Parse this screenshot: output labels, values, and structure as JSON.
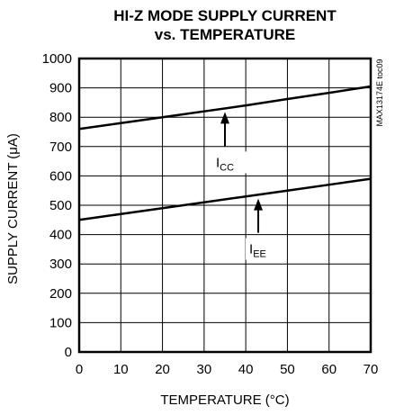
{
  "chart_data": {
    "type": "line",
    "title_line1": "HI-Z MODE SUPPLY CURRENT",
    "title_line2": "vs. TEMPERATURE",
    "xlabel": "TEMPERATURE (°C)",
    "ylabel": "SUPPLY CURRENT (μA)",
    "xlim": [
      0,
      70
    ],
    "ylim": [
      0,
      1000
    ],
    "x_ticks": [
      0,
      10,
      20,
      30,
      40,
      50,
      60,
      70
    ],
    "y_ticks": [
      0,
      100,
      200,
      300,
      400,
      500,
      600,
      700,
      800,
      900,
      1000
    ],
    "grid": true,
    "side_code": "MAX13174E toc09",
    "series": [
      {
        "name": "ICC",
        "label_main": "I",
        "label_sub": "CC",
        "x": [
          0,
          10,
          20,
          30,
          40,
          50,
          60,
          70
        ],
        "values": [
          760,
          780,
          800,
          820,
          840,
          862,
          883,
          905
        ]
      },
      {
        "name": "IEE",
        "label_main": "I",
        "label_sub": "EE",
        "x": [
          0,
          10,
          20,
          30,
          40,
          50,
          60,
          70
        ],
        "values": [
          450,
          470,
          490,
          510,
          530,
          550,
          570,
          590
        ]
      }
    ],
    "annotations": [
      {
        "series": "ICC",
        "arrow_x": 35,
        "arrow_y_value": 830
      },
      {
        "series": "IEE",
        "arrow_x": 43,
        "arrow_y_value": 535
      }
    ]
  }
}
